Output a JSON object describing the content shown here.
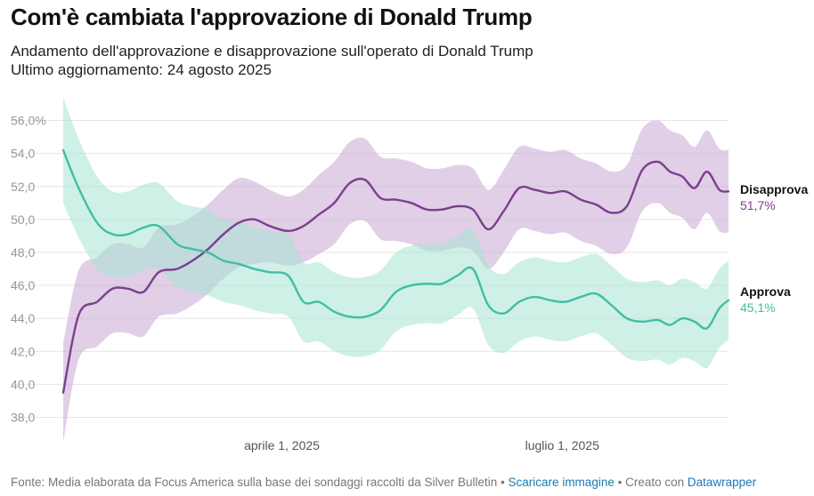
{
  "title": "Com'è cambiata l'approvazione di Donald Trump",
  "subtitle_line1": "Andamento dell'approvazione e disapprovazione sull'operato di Donald Trump",
  "subtitle_line2": "Ultimo aggiornamento: 24 agosto 2025",
  "footer": {
    "source": "Fonte: Media elaborata da Focus America sulla base dei sondaggi raccolti da Silver Bulletin",
    "sep1": " • ",
    "download": "Scaricare immagine",
    "sep2": " • ",
    "created": "Creato con ",
    "tool": "Datawrapper"
  },
  "chart_data": {
    "type": "area",
    "x_start": "2025-01-20",
    "x_end": "2025-08-24",
    "ylim": [
      37,
      57
    ],
    "yticks": [
      38,
      40,
      42,
      44,
      46,
      48,
      50,
      52,
      54,
      56
    ],
    "ytick_labels": [
      "38,0",
      "40,0",
      "42,0",
      "44,0",
      "46,0",
      "48,0",
      "50,0",
      "52,0",
      "54,0",
      "56,0%"
    ],
    "xticks": [
      {
        "date": "2025-04-01",
        "label": "aprile 1, 2025"
      },
      {
        "date": "2025-07-01",
        "label": "luglio 1, 2025"
      }
    ],
    "grid": true,
    "series": [
      {
        "name": "Disapprova",
        "color": "#7b3f8c",
        "band_color": "#c9a6d3",
        "end_label": "51,7%",
        "points": [
          [
            "2025-01-20",
            39.5,
            36.5,
            42.5
          ],
          [
            "2025-01-25",
            44.2,
            41.5,
            46.9
          ],
          [
            "2025-01-31",
            45.0,
            42.3,
            47.7
          ],
          [
            "2025-02-05",
            45.8,
            43.1,
            48.5
          ],
          [
            "2025-02-10",
            45.8,
            43.1,
            48.5
          ],
          [
            "2025-02-15",
            45.6,
            42.9,
            48.3
          ],
          [
            "2025-02-20",
            46.8,
            44.1,
            49.5
          ],
          [
            "2025-02-26",
            47.0,
            44.3,
            49.7
          ],
          [
            "2025-03-03",
            47.5,
            44.8,
            50.2
          ],
          [
            "2025-03-08",
            48.2,
            45.5,
            50.9
          ],
          [
            "2025-03-13",
            49.1,
            46.4,
            51.8
          ],
          [
            "2025-03-18",
            49.8,
            47.1,
            52.5
          ],
          [
            "2025-03-23",
            50.0,
            47.3,
            52.3
          ],
          [
            "2025-03-28",
            49.6,
            47.4,
            51.8
          ],
          [
            "2025-04-03",
            49.3,
            47.2,
            51.4
          ],
          [
            "2025-04-08",
            49.6,
            47.4,
            51.8
          ],
          [
            "2025-04-13",
            50.3,
            47.9,
            52.7
          ],
          [
            "2025-04-18",
            51.0,
            48.5,
            53.5
          ],
          [
            "2025-04-23",
            52.2,
            49.7,
            54.7
          ],
          [
            "2025-04-28",
            52.4,
            49.9,
            54.9
          ],
          [
            "2025-05-03",
            51.3,
            48.8,
            53.8
          ],
          [
            "2025-05-08",
            51.2,
            48.7,
            53.7
          ],
          [
            "2025-05-13",
            51.0,
            48.5,
            53.5
          ],
          [
            "2025-05-18",
            50.6,
            48.1,
            53.1
          ],
          [
            "2025-05-23",
            50.6,
            48.1,
            53.1
          ],
          [
            "2025-05-28",
            50.8,
            48.3,
            53.3
          ],
          [
            "2025-06-02",
            50.6,
            48.1,
            53.1
          ],
          [
            "2025-06-07",
            49.4,
            47.0,
            51.8
          ],
          [
            "2025-06-12",
            50.5,
            48.0,
            53.0
          ],
          [
            "2025-06-17",
            51.9,
            49.4,
            54.4
          ],
          [
            "2025-06-22",
            51.8,
            49.3,
            54.3
          ],
          [
            "2025-06-27",
            51.6,
            49.1,
            54.1
          ],
          [
            "2025-07-02",
            51.7,
            49.2,
            54.2
          ],
          [
            "2025-07-07",
            51.2,
            48.7,
            53.7
          ],
          [
            "2025-07-12",
            50.9,
            48.4,
            53.4
          ],
          [
            "2025-07-17",
            50.4,
            47.9,
            52.9
          ],
          [
            "2025-07-22",
            50.8,
            48.3,
            53.3
          ],
          [
            "2025-07-27",
            53.0,
            50.5,
            55.5
          ],
          [
            "2025-08-01",
            53.5,
            51.0,
            56.0
          ],
          [
            "2025-08-05",
            52.9,
            50.4,
            55.4
          ],
          [
            "2025-08-09",
            52.6,
            50.1,
            55.1
          ],
          [
            "2025-08-13",
            51.9,
            49.4,
            54.4
          ],
          [
            "2025-08-17",
            52.9,
            50.4,
            55.4
          ],
          [
            "2025-08-21",
            51.8,
            49.3,
            54.3
          ],
          [
            "2025-08-24",
            51.7,
            49.2,
            54.2
          ]
        ]
      },
      {
        "name": "Approva",
        "color": "#3ebfa3",
        "band_color": "#a7e3d3",
        "end_label": "45,1%",
        "points": [
          [
            "2025-01-20",
            54.2,
            51.0,
            57.4
          ],
          [
            "2025-01-25",
            51.9,
            48.9,
            54.9
          ],
          [
            "2025-01-31",
            49.8,
            47.0,
            52.6
          ],
          [
            "2025-02-05",
            49.1,
            46.5,
            51.7
          ],
          [
            "2025-02-10",
            49.1,
            46.5,
            51.7
          ],
          [
            "2025-02-15",
            49.5,
            46.9,
            52.1
          ],
          [
            "2025-02-20",
            49.6,
            47.0,
            52.2
          ],
          [
            "2025-02-26",
            48.5,
            45.9,
            51.1
          ],
          [
            "2025-03-03",
            48.2,
            45.6,
            50.8
          ],
          [
            "2025-03-08",
            48.0,
            45.4,
            50.6
          ],
          [
            "2025-03-13",
            47.5,
            45.0,
            50.0
          ],
          [
            "2025-03-18",
            47.3,
            44.8,
            49.8
          ],
          [
            "2025-03-23",
            47.0,
            44.5,
            49.5
          ],
          [
            "2025-03-28",
            46.8,
            44.3,
            49.3
          ],
          [
            "2025-04-03",
            46.6,
            44.1,
            49.1
          ],
          [
            "2025-04-08",
            45.0,
            42.6,
            47.4
          ],
          [
            "2025-04-13",
            45.0,
            42.6,
            47.4
          ],
          [
            "2025-04-18",
            44.4,
            42.0,
            46.8
          ],
          [
            "2025-04-23",
            44.1,
            41.7,
            46.5
          ],
          [
            "2025-04-28",
            44.1,
            41.7,
            46.5
          ],
          [
            "2025-05-03",
            44.5,
            42.1,
            46.9
          ],
          [
            "2025-05-08",
            45.6,
            43.2,
            48.0
          ],
          [
            "2025-05-13",
            46.0,
            43.6,
            48.4
          ],
          [
            "2025-05-18",
            46.1,
            43.7,
            48.5
          ],
          [
            "2025-05-23",
            46.1,
            43.7,
            48.5
          ],
          [
            "2025-05-28",
            46.6,
            44.2,
            49.0
          ],
          [
            "2025-06-02",
            47.0,
            44.6,
            49.4
          ],
          [
            "2025-06-07",
            44.8,
            42.4,
            47.2
          ],
          [
            "2025-06-12",
            44.3,
            41.9,
            46.7
          ],
          [
            "2025-06-17",
            45.0,
            42.6,
            47.4
          ],
          [
            "2025-06-22",
            45.3,
            42.9,
            47.7
          ],
          [
            "2025-06-27",
            45.1,
            42.7,
            47.5
          ],
          [
            "2025-07-02",
            45.0,
            42.6,
            47.4
          ],
          [
            "2025-07-07",
            45.3,
            42.9,
            47.7
          ],
          [
            "2025-07-12",
            45.5,
            43.1,
            47.9
          ],
          [
            "2025-07-17",
            44.8,
            42.4,
            47.2
          ],
          [
            "2025-07-22",
            44.0,
            41.6,
            46.4
          ],
          [
            "2025-07-27",
            43.8,
            41.4,
            46.2
          ],
          [
            "2025-08-01",
            43.9,
            41.5,
            46.3
          ],
          [
            "2025-08-05",
            43.6,
            41.2,
            46.0
          ],
          [
            "2025-08-09",
            44.0,
            41.6,
            46.4
          ],
          [
            "2025-08-13",
            43.8,
            41.4,
            46.2
          ],
          [
            "2025-08-17",
            43.4,
            41.0,
            45.8
          ],
          [
            "2025-08-21",
            44.6,
            42.2,
            47.0
          ],
          [
            "2025-08-24",
            45.1,
            42.7,
            47.5
          ]
        ]
      }
    ]
  }
}
